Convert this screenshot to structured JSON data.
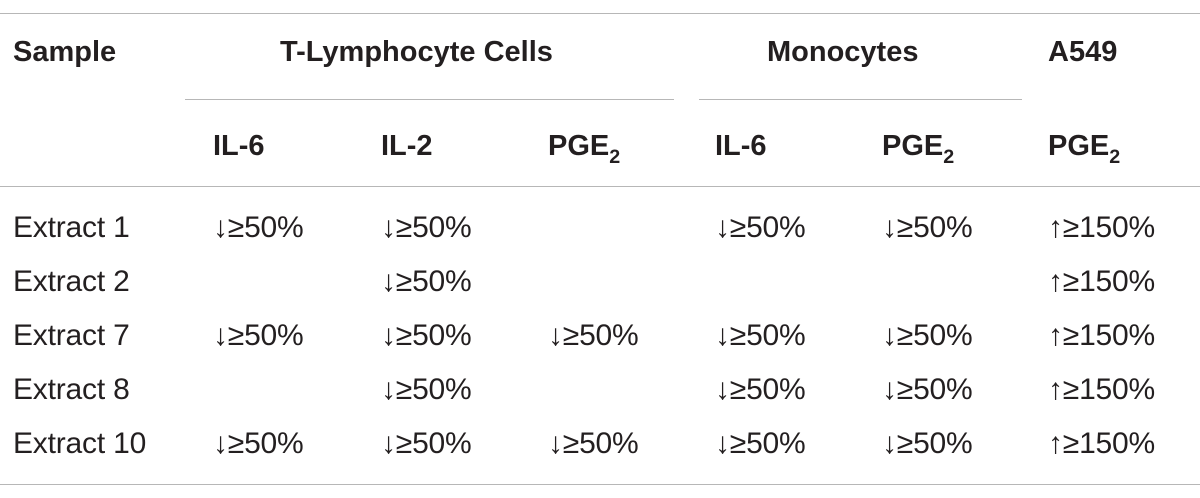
{
  "table": {
    "group_headers": {
      "sample": "Sample",
      "t_lymphocyte": "T-Lymphocyte Cells",
      "monocytes": "Monocytes",
      "a549": "A549"
    },
    "sub_headers": [
      {
        "base": "IL-6",
        "sub": ""
      },
      {
        "base": "IL-2",
        "sub": ""
      },
      {
        "base": "PGE",
        "sub": "2"
      },
      {
        "base": "IL-6",
        "sub": ""
      },
      {
        "base": "PGE",
        "sub": "2"
      },
      {
        "base": "PGE",
        "sub": "2"
      }
    ],
    "rows": [
      {
        "sample": "Extract 1",
        "cells": [
          "↓≥50%",
          "↓≥50%",
          "",
          "↓≥50%",
          "↓≥50%",
          "↑≥150%"
        ]
      },
      {
        "sample": "Extract 2",
        "cells": [
          "",
          "↓≥50%",
          "",
          "",
          "",
          "↑≥150%"
        ]
      },
      {
        "sample": "Extract 7",
        "cells": [
          "↓≥50%",
          "↓≥50%",
          "↓≥50%",
          "↓≥50%",
          "↓≥50%",
          "↑≥150%"
        ]
      },
      {
        "sample": "Extract 8",
        "cells": [
          "",
          "↓≥50%",
          "",
          "↓≥50%",
          "↓≥50%",
          "↑≥150%"
        ]
      },
      {
        "sample": "Extract 10",
        "cells": [
          "↓≥50%",
          "↓≥50%",
          "↓≥50%",
          "↓≥50%",
          "↓≥50%",
          "↑≥150%"
        ]
      }
    ]
  }
}
